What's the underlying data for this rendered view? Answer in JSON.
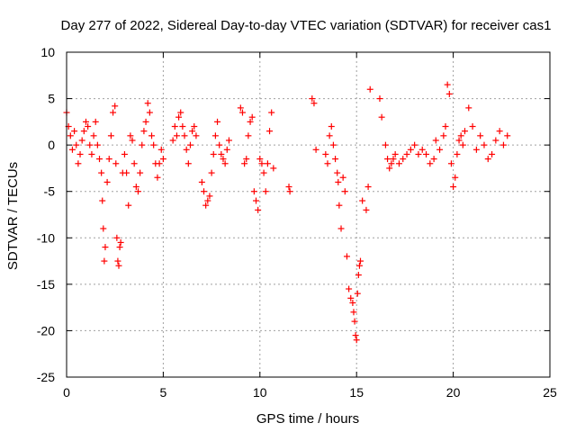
{
  "chart_data": {
    "type": "scatter",
    "title": "Day 277 of 2022, Sidereal Day-to-day VTEC variation (SDTVAR) for receiver cas1",
    "xlabel": "GPS time / hours",
    "ylabel": "SDTVAR / TECUs",
    "xlim": [
      0,
      25
    ],
    "ylim": [
      -25,
      10
    ],
    "xticks": [
      0,
      5,
      10,
      15,
      20,
      25
    ],
    "yticks": [
      -25,
      -20,
      -15,
      -10,
      -5,
      0,
      5,
      10
    ],
    "xtick_labels": [
      "0",
      "5",
      "10",
      "15",
      "20",
      "25"
    ],
    "ytick_labels": [
      "-25",
      "-20",
      "-15",
      "-10",
      "-5",
      "0",
      "5",
      "10"
    ],
    "grid": true,
    "legend": "none",
    "marker": "+",
    "series": [
      {
        "name": "SDTVAR",
        "color": "#ff0000",
        "x": [
          0.0,
          0.1,
          0.2,
          0.3,
          0.4,
          0.5,
          0.6,
          0.7,
          0.8,
          0.9,
          1.0,
          1.1,
          1.2,
          1.3,
          1.4,
          1.5,
          1.6,
          1.7,
          1.8,
          1.85,
          1.9,
          1.95,
          2.0,
          2.1,
          2.2,
          2.3,
          2.4,
          2.5,
          2.55,
          2.6,
          2.65,
          2.7,
          2.75,
          2.8,
          2.9,
          3.0,
          3.1,
          3.2,
          3.3,
          3.4,
          3.5,
          3.6,
          3.7,
          3.8,
          3.9,
          4.0,
          4.1,
          4.2,
          4.3,
          4.4,
          4.5,
          4.6,
          4.7,
          4.8,
          4.9,
          5.0,
          5.5,
          5.6,
          5.7,
          5.8,
          5.9,
          6.0,
          6.1,
          6.2,
          6.3,
          6.4,
          6.5,
          6.6,
          6.7,
          7.0,
          7.1,
          7.2,
          7.3,
          7.4,
          7.5,
          7.6,
          7.7,
          7.8,
          7.9,
          8.0,
          8.1,
          8.2,
          8.3,
          8.4,
          9.0,
          9.1,
          9.2,
          9.3,
          9.4,
          9.5,
          9.6,
          9.7,
          9.8,
          9.9,
          10.0,
          10.1,
          10.2,
          10.3,
          10.4,
          10.5,
          10.6,
          10.7,
          11.5,
          11.55,
          12.7,
          12.8,
          12.9,
          13.4,
          13.5,
          13.6,
          13.7,
          13.8,
          13.9,
          14.0,
          14.05,
          14.1,
          14.2,
          14.3,
          14.4,
          14.5,
          14.6,
          14.7,
          14.8,
          14.85,
          14.9,
          14.95,
          15.0,
          15.05,
          15.1,
          15.15,
          15.2,
          15.3,
          15.5,
          15.6,
          15.7,
          16.2,
          16.3,
          16.5,
          16.6,
          16.7,
          16.8,
          16.9,
          17.0,
          17.2,
          17.4,
          17.6,
          17.8,
          18.0,
          18.2,
          18.4,
          18.6,
          18.8,
          19.0,
          19.1,
          19.3,
          19.5,
          19.6,
          19.7,
          19.8,
          19.9,
          20.0,
          20.1,
          20.2,
          20.3,
          20.4,
          20.5,
          20.6,
          20.8,
          21.0,
          21.2,
          21.4,
          21.6,
          21.8,
          22.0,
          22.2,
          22.4,
          22.6,
          22.8
        ],
        "y": [
          3.5,
          2.0,
          1.0,
          -0.5,
          1.5,
          0.0,
          -2.0,
          -1.0,
          0.5,
          1.5,
          2.5,
          2.0,
          0.0,
          -1.0,
          1.0,
          2.5,
          0.0,
          -1.5,
          -3.0,
          -6.0,
          -9.0,
          -12.5,
          -11.0,
          -4.0,
          -1.5,
          1.0,
          3.5,
          4.2,
          -2.0,
          -10.0,
          -12.5,
          -13.0,
          -11.0,
          -10.5,
          -3.0,
          -1.0,
          -3.0,
          -6.5,
          1.0,
          0.5,
          -2.0,
          -4.5,
          -5.0,
          -3.0,
          0.0,
          1.5,
          2.5,
          4.5,
          3.5,
          1.0,
          0.0,
          -2.0,
          -3.5,
          -2.0,
          -0.5,
          -1.5,
          0.5,
          2.0,
          1.0,
          3.0,
          3.5,
          2.0,
          1.0,
          -0.5,
          -2.0,
          0.0,
          1.5,
          2.0,
          1.0,
          -4.0,
          -5.0,
          -6.5,
          -6.0,
          -5.5,
          -3.0,
          -1.0,
          1.0,
          2.5,
          0.0,
          -1.0,
          -1.5,
          -2.0,
          -0.5,
          0.5,
          4.0,
          3.5,
          -2.0,
          -1.5,
          1.0,
          2.5,
          3.0,
          -5.0,
          -6.0,
          -7.0,
          -1.5,
          -2.0,
          -3.0,
          -5.0,
          -2.0,
          1.5,
          3.5,
          -2.5,
          -4.5,
          -5.0,
          5.0,
          4.5,
          -0.5,
          -1.0,
          -2.0,
          1.0,
          2.0,
          0.0,
          -1.5,
          -3.0,
          -4.0,
          -6.5,
          -9.0,
          -3.5,
          -5.0,
          -12.0,
          -15.5,
          -16.5,
          -17.0,
          -18.0,
          -19.0,
          -20.5,
          -21.0,
          -16.0,
          -14.0,
          -13.0,
          -12.5,
          -6.0,
          -7.0,
          -4.5,
          6.0,
          5.0,
          3.0,
          0.0,
          -1.5,
          -2.5,
          -2.0,
          -1.5,
          -1.0,
          -2.0,
          -1.5,
          -1.0,
          -0.5,
          0.0,
          -1.0,
          -0.5,
          -1.0,
          -2.0,
          -1.5,
          0.5,
          -0.5,
          1.0,
          2.0,
          6.5,
          5.5,
          -2.0,
          -4.5,
          -3.5,
          -1.0,
          0.5,
          1.0,
          0.0,
          1.5,
          4.0,
          2.0,
          -0.5,
          1.0,
          0.0,
          -1.5,
          -1.0,
          0.5,
          1.5,
          0.0,
          1.0
        ]
      }
    ]
  }
}
